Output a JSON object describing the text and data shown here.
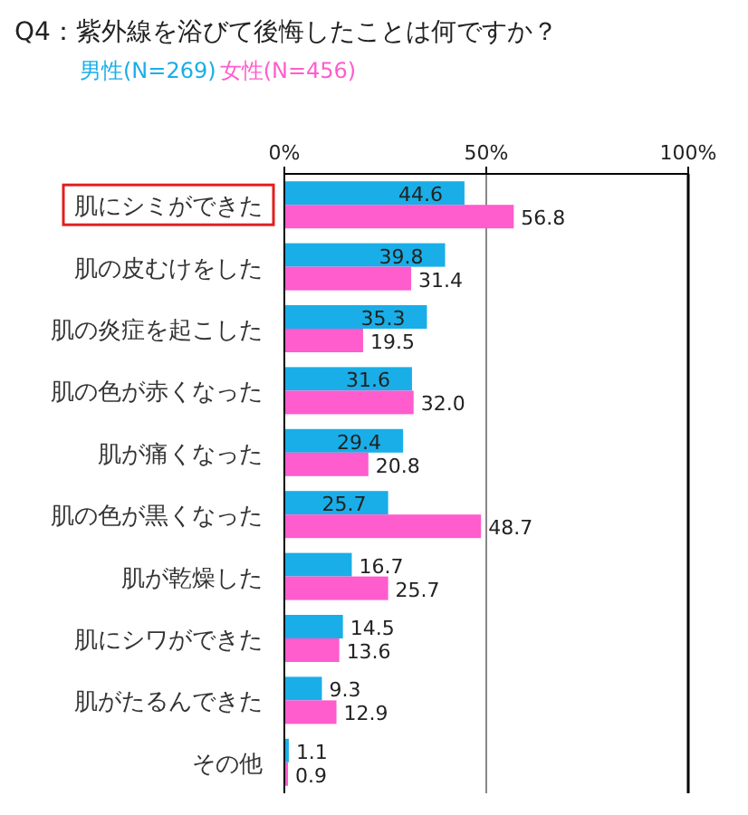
{
  "chart_data": {
    "type": "bar",
    "orientation": "horizontal",
    "title": "Q4：紫外線を浴びて後悔したことは何ですか？",
    "categories": [
      "肌にシミができた",
      "肌の皮むけをした",
      "肌の炎症を起こした",
      "肌の色が赤くなった",
      "肌が痛くなった",
      "肌の色が黒くなった",
      "肌が乾燥した",
      "肌にシワができた",
      "肌がたるんできた",
      "その他"
    ],
    "series": [
      {
        "name": "男性(N=269)",
        "color": "#19aee8",
        "values": [
          44.6,
          39.8,
          35.3,
          31.6,
          29.4,
          25.7,
          16.7,
          14.5,
          9.3,
          1.1
        ],
        "value_labels": [
          "44.6",
          "39.8",
          "35.3",
          "31.6",
          "29.4",
          "25.7",
          "16.7",
          "14.5",
          "9.3",
          "1.1"
        ]
      },
      {
        "name": "女性(N=456)",
        "color": "#ff5ccd",
        "values": [
          56.8,
          31.4,
          19.5,
          32.0,
          20.8,
          48.7,
          25.7,
          13.6,
          12.9,
          0.9
        ],
        "value_labels": [
          "56.8",
          "31.4",
          "19.5",
          "32.0",
          "20.8",
          "48.7",
          "25.7",
          "13.6",
          "12.9",
          "0.9"
        ]
      }
    ],
    "xlim": [
      0,
      100
    ],
    "xticks": [
      {
        "value": 0,
        "label": "0%"
      },
      {
        "value": 50,
        "label": "50%"
      },
      {
        "value": 100,
        "label": "100%"
      }
    ],
    "grid": "x",
    "legend": "top left"
  }
}
